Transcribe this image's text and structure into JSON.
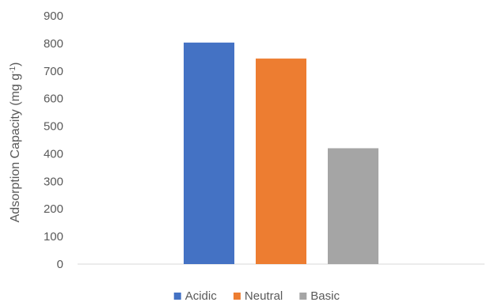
{
  "chart_data": {
    "type": "bar",
    "categories": [
      "Acidic",
      "Neutral",
      "Basic"
    ],
    "series": [
      {
        "name": "Acidic",
        "values": [
          803,
          null,
          null
        ],
        "color": "#4472C4"
      },
      {
        "name": "Neutral",
        "values": [
          null,
          745,
          null
        ],
        "color": "#ED7D31"
      },
      {
        "name": "Basic",
        "values": [
          null,
          null,
          420
        ],
        "color": "#A5A5A5"
      }
    ],
    "title": "",
    "xlabel": "",
    "ylabel": "Adsorption Capacity (mg g",
    "ylabel_superscript": "-1",
    "ylabel_close": ")",
    "ylim": [
      0,
      900
    ],
    "yticks": [
      0,
      100,
      200,
      300,
      400,
      500,
      600,
      700,
      800,
      900
    ],
    "grid": false,
    "legend_position": "bottom"
  }
}
